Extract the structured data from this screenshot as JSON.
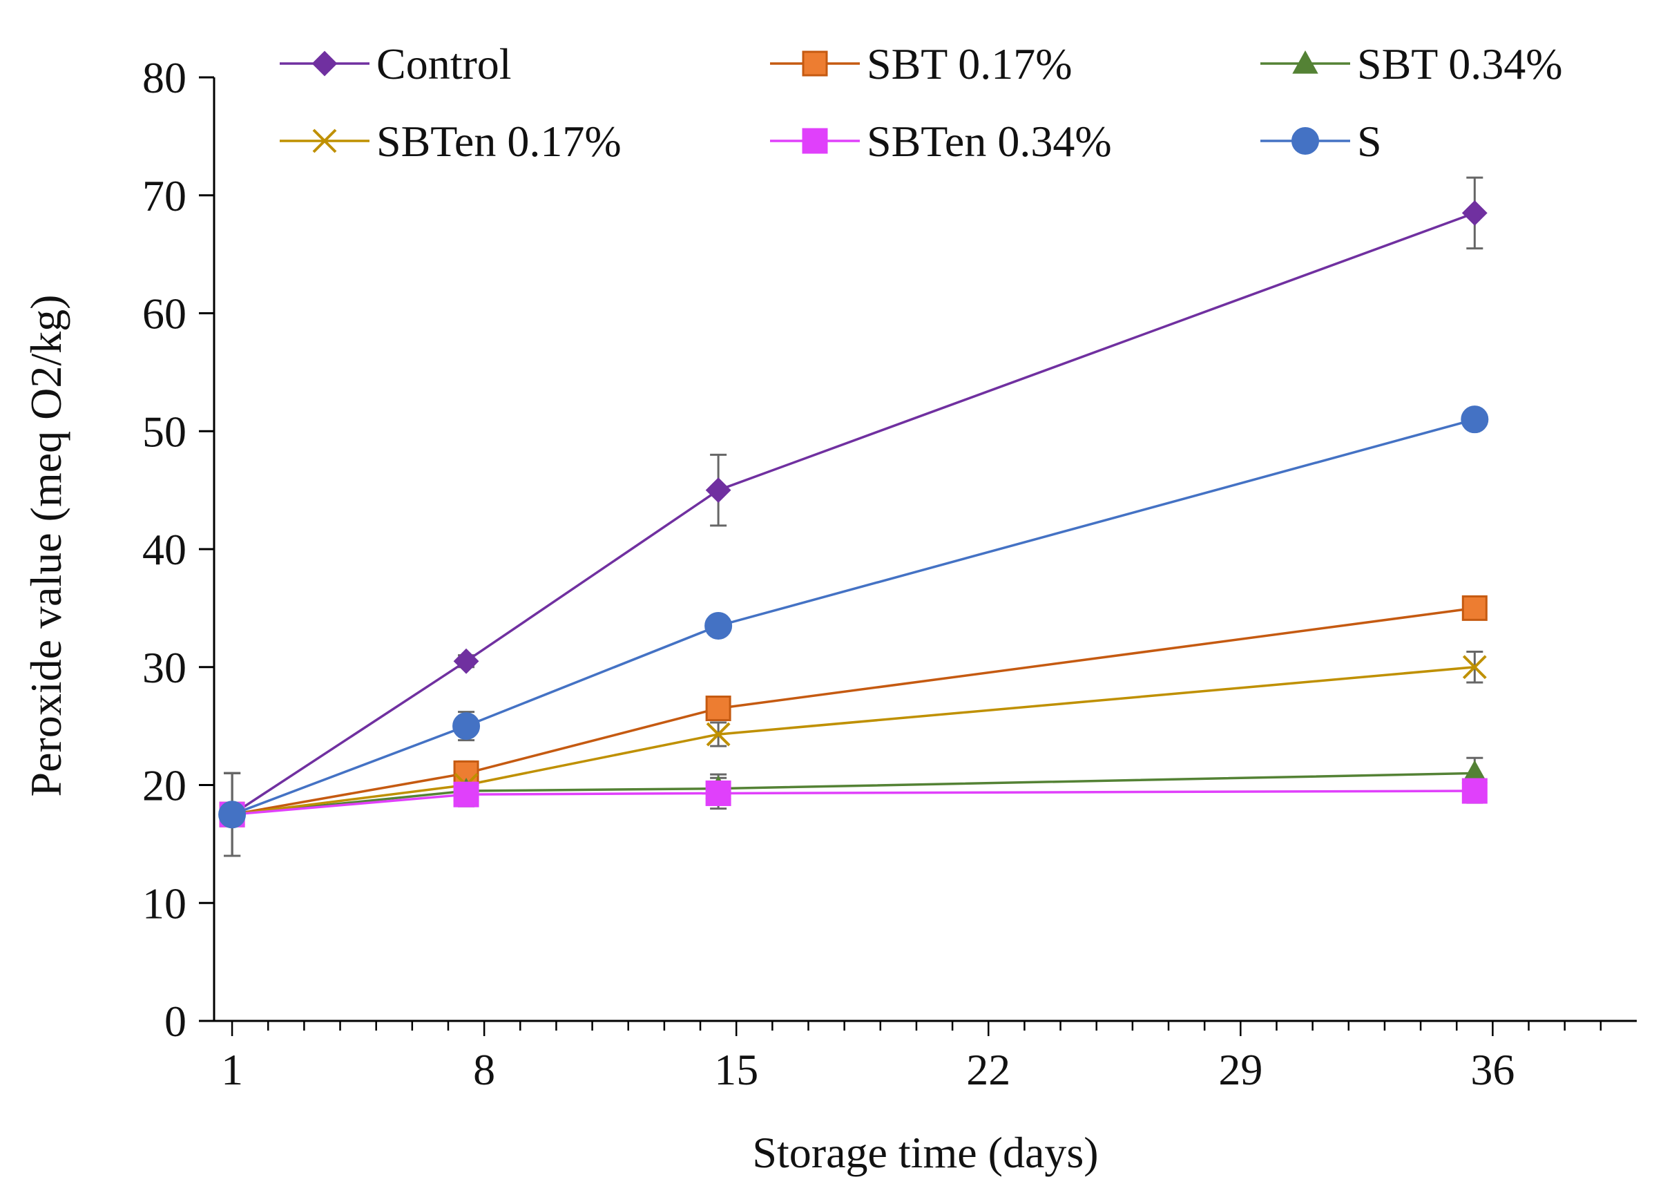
{
  "chart_data": {
    "type": "line",
    "title": "",
    "xlabel": "Storage time (days)",
    "ylabel": "Peroxide value (meq O2/kg)",
    "xlim": [
      0.5,
      40
    ],
    "ylim": [
      0,
      80
    ],
    "x_ticks": [
      1,
      8,
      15,
      22,
      29,
      36
    ],
    "x_tick_labels": [
      "1",
      "8",
      "15",
      "22",
      "29",
      "36"
    ],
    "y_ticks": [
      0,
      10,
      20,
      30,
      40,
      50,
      60,
      70,
      80
    ],
    "y_tick_labels": [
      "0",
      "10",
      "20",
      "30",
      "40",
      "50",
      "60",
      "70",
      "80"
    ],
    "grid": false,
    "legend_position": "top",
    "x": [
      1,
      7.5,
      14.5,
      35.5
    ],
    "series": [
      {
        "name": "Control",
        "color": "#7030A0",
        "marker": "diamond",
        "values": [
          17.5,
          30.5,
          45,
          68.5
        ],
        "errors": [
          3.5,
          0.5,
          3,
          3
        ]
      },
      {
        "name": "SBT 0.17%",
        "color": "#C55A11",
        "fill": "#ED7D31",
        "marker": "square",
        "values": [
          17.5,
          21,
          26.5,
          35
        ],
        "errors": [
          3.5,
          1,
          0.5,
          0.5
        ]
      },
      {
        "name": "SBT 0.34%",
        "color": "#548235",
        "marker": "triangle",
        "values": [
          17.5,
          19.5,
          19.7,
          21
        ],
        "errors": [
          3.5,
          1,
          1.2,
          1.3
        ]
      },
      {
        "name": "SBTen 0.17%",
        "color": "#BF9000",
        "marker": "x",
        "values": [
          17.5,
          20,
          24.3,
          30
        ],
        "errors": [
          3.5,
          1.5,
          1,
          1.3
        ]
      },
      {
        "name": "SBTen 0.34%",
        "color": "#E040FB",
        "marker": "square",
        "values": [
          17.5,
          19.2,
          19.3,
          19.5
        ],
        "errors": [
          3.5,
          1,
          1.3,
          1
        ]
      },
      {
        "name": "S",
        "color": "#4472C4",
        "marker": "circle",
        "values": [
          17.5,
          25,
          33.5,
          51
        ],
        "errors": [
          3.5,
          1.2,
          0.5,
          0.5
        ]
      }
    ]
  }
}
